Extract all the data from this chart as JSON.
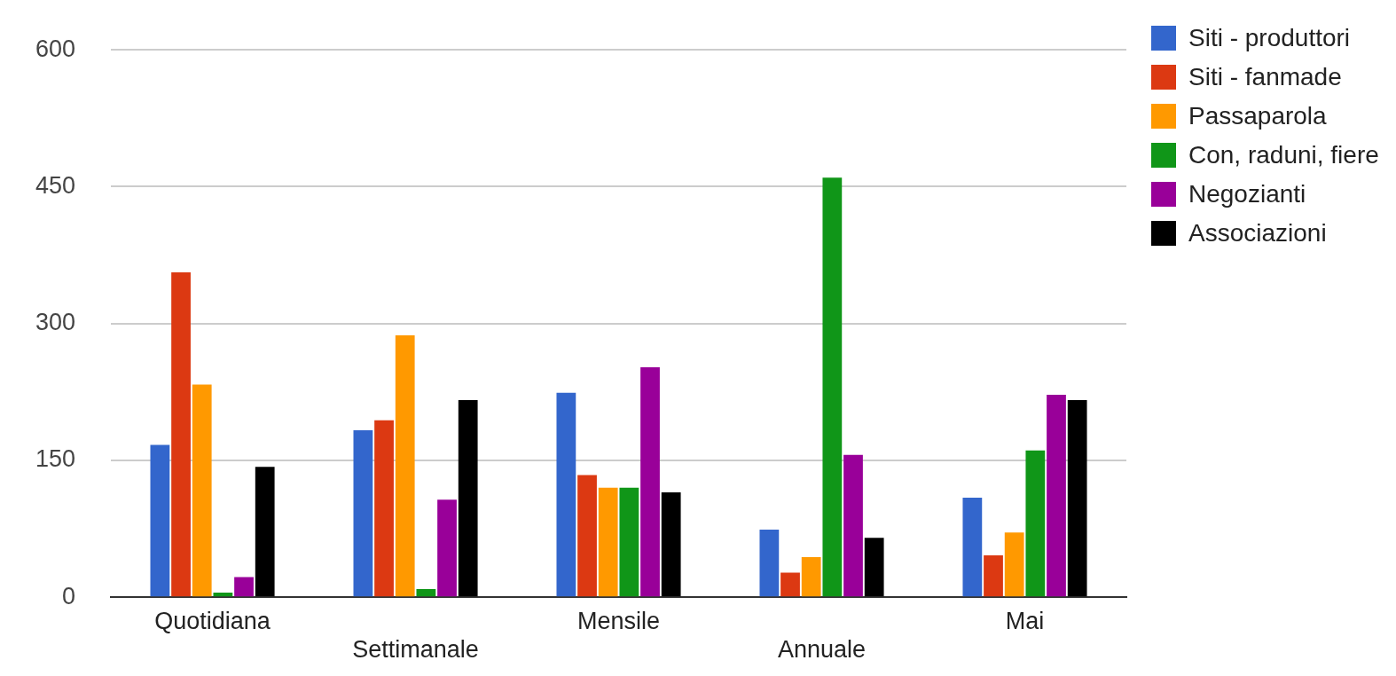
{
  "chart_data": {
    "type": "bar",
    "categories": [
      "Quotidiana",
      "Settimanale",
      "Mensile",
      "Annuale",
      "Mai"
    ],
    "series": [
      {
        "name": "Siti - produttori",
        "color": "#3366cc",
        "values": [
          167,
          183,
          224,
          74,
          109
        ]
      },
      {
        "name": "Siti - fanmade",
        "color": "#dc3912",
        "values": [
          356,
          194,
          134,
          27,
          46
        ]
      },
      {
        "name": "Passaparola",
        "color": "#ff9900",
        "values": [
          233,
          287,
          120,
          44,
          71
        ]
      },
      {
        "name": "Con, raduni, fiere",
        "color": "#109618",
        "values": [
          5,
          9,
          120,
          460,
          161
        ]
      },
      {
        "name": "Negozianti",
        "color": "#990099",
        "values": [
          22,
          107,
          252,
          156,
          222
        ]
      },
      {
        "name": "Associazioni",
        "color": "#000000",
        "values": [
          143,
          216,
          115,
          65,
          216
        ]
      }
    ],
    "ylim": [
      0,
      600
    ],
    "yticks": [
      0,
      150,
      300,
      450,
      600
    ],
    "grid": "y",
    "legend": "right"
  }
}
